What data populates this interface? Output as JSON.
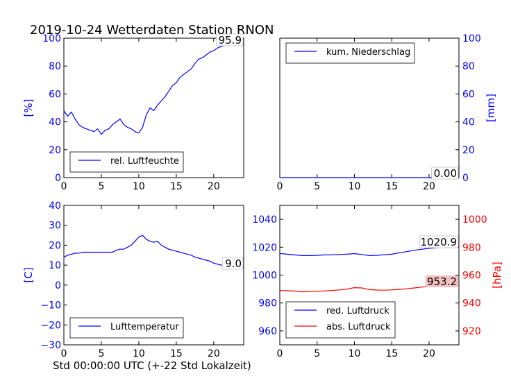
{
  "title": "2019-10-24 Wetterdaten Station RNON",
  "xlabel": "Std 00:00:00 UTC (+-22 Std Lokalzeit)",
  "colors": {
    "blue": "#0000ff",
    "red": "#ff0000",
    "black": "#000000",
    "highlight": "#f4c0c0"
  },
  "chart_data": [
    {
      "type": "line",
      "panel": "top-left",
      "ylabel": "[%]",
      "xlim": [
        0,
        24
      ],
      "ylim": [
        0,
        100
      ],
      "xticks": [
        0,
        5,
        10,
        15,
        20
      ],
      "yticks": [
        0,
        20,
        40,
        60,
        80,
        100
      ],
      "grid": false,
      "legend_position": "lower-left",
      "series": [
        {
          "name": "rel. Luftfeuchte",
          "color": "#0000ff",
          "x": [
            0,
            0.5,
            1,
            1.5,
            2,
            2.5,
            3,
            3.5,
            4,
            4.5,
            5,
            5.5,
            6,
            6.5,
            7,
            7.5,
            8,
            8.5,
            9,
            9.5,
            10,
            10.5,
            11,
            11.5,
            12,
            12.5,
            13,
            13.5,
            14,
            14.5,
            15,
            15.5,
            16,
            16.5,
            17,
            17.5,
            18,
            18.5,
            19,
            19.5,
            20,
            20.5,
            21,
            21.5,
            22,
            22.5,
            23,
            23.5,
            24
          ],
          "values": [
            48,
            44,
            47,
            42,
            38,
            36,
            35,
            34,
            33,
            35,
            31,
            34,
            35,
            38,
            40,
            42,
            38,
            36,
            35,
            33,
            32,
            36,
            45,
            50,
            48,
            52,
            55,
            58,
            62,
            66,
            68,
            72,
            74,
            76,
            78,
            82,
            85,
            86,
            88,
            90,
            91,
            93,
            94,
            95,
            95,
            96,
            95.5,
            96,
            95.9
          ]
        }
      ],
      "annotation": "95.9"
    },
    {
      "type": "line",
      "panel": "top-right",
      "ylabel": "[mm]",
      "xlim": [
        0,
        24
      ],
      "ylim": [
        0,
        100
      ],
      "xticks": [
        0,
        5,
        10,
        15,
        20
      ],
      "yticks": [
        0,
        20,
        40,
        60,
        80,
        100
      ],
      "grid": false,
      "legend_position": "upper-left",
      "series": [
        {
          "name": "kum. Niederschlag",
          "color": "#0000ff",
          "x": [
            0,
            24
          ],
          "values": [
            0,
            0
          ]
        }
      ],
      "annotation": "0.00"
    },
    {
      "type": "line",
      "panel": "bottom-left",
      "ylabel": "[C]",
      "xlim": [
        0,
        24
      ],
      "ylim": [
        -30,
        40
      ],
      "xticks": [
        0,
        5,
        10,
        15,
        20
      ],
      "yticks": [
        -30,
        -20,
        -10,
        0,
        10,
        20,
        30,
        40
      ],
      "grid": false,
      "legend_position": "lower-left",
      "series": [
        {
          "name": "Lufttemperatur",
          "color": "#0000ff",
          "x": [
            0,
            0.5,
            1,
            1.5,
            2,
            2.5,
            3,
            3.5,
            4,
            4.5,
            5,
            5.5,
            6,
            6.5,
            7,
            7.5,
            8,
            8.5,
            9,
            9.5,
            10,
            10.5,
            11,
            11.5,
            12,
            12.5,
            13,
            13.5,
            14,
            14.5,
            15,
            15.5,
            16,
            16.5,
            17,
            17.5,
            18,
            18.5,
            19,
            19.5,
            20,
            20.5,
            21,
            21.5,
            22,
            22.5,
            23,
            23.5,
            24
          ],
          "values": [
            14,
            15,
            15.5,
            16,
            16,
            16.5,
            16.5,
            16.5,
            16.5,
            16.5,
            16.5,
            16.5,
            16.5,
            16.5,
            17.5,
            18,
            18,
            19,
            20,
            22,
            24,
            25,
            23,
            22,
            21.5,
            22,
            20,
            19,
            18,
            17.5,
            17,
            16.5,
            16,
            15.5,
            15,
            14,
            13.5,
            13,
            12.5,
            12,
            11,
            10.5,
            10,
            10,
            9.5,
            9.2,
            9.1,
            9.0,
            9.0
          ]
        }
      ],
      "annotation": "9.0"
    },
    {
      "type": "line",
      "panel": "bottom-right",
      "ylabel": "[hPa]",
      "xlim": [
        0,
        24
      ],
      "ylim_left": [
        950,
        1050
      ],
      "yticks_left": [
        960,
        980,
        1000,
        1020,
        1040
      ],
      "ylim_right": [
        910,
        1010
      ],
      "yticks_right": [
        920,
        940,
        960,
        980,
        1000
      ],
      "xticks": [
        0,
        5,
        10,
        15,
        20
      ],
      "grid": false,
      "legend_position": "lower-left",
      "series": [
        {
          "name": "red. Luftdruck",
          "color": "#0000ff",
          "axis": "left",
          "x": [
            0,
            1,
            2,
            3,
            4,
            5,
            6,
            7,
            8,
            9,
            10,
            11,
            12,
            13,
            14,
            15,
            16,
            17,
            18,
            19,
            20,
            21,
            22,
            23,
            24
          ],
          "values": [
            1015.5,
            1015,
            1014.5,
            1014,
            1014,
            1014.2,
            1014.5,
            1014.6,
            1014.8,
            1015,
            1015.4,
            1014.8,
            1014,
            1014.2,
            1014.6,
            1015,
            1016,
            1016.8,
            1017.8,
            1018.5,
            1019.2,
            1019.7,
            1020.2,
            1020.6,
            1020.9
          ]
        },
        {
          "name": "abs. Luftdruck",
          "color": "#ff0000",
          "axis": "right",
          "x": [
            0,
            1,
            2,
            3,
            4,
            5,
            6,
            7,
            8,
            9,
            10,
            11,
            12,
            13,
            14,
            15,
            16,
            17,
            18,
            19,
            20,
            21,
            22,
            23,
            24
          ],
          "values": [
            949,
            948.8,
            948.6,
            948,
            948.2,
            948.4,
            948.6,
            949,
            949.4,
            950,
            951,
            950.8,
            949.6,
            949.3,
            949.2,
            949.4,
            949.8,
            950.2,
            950.8,
            951.4,
            952,
            952.4,
            952.8,
            953,
            953.2
          ]
        }
      ],
      "annotations": [
        "1020.9",
        "953.2"
      ]
    }
  ]
}
